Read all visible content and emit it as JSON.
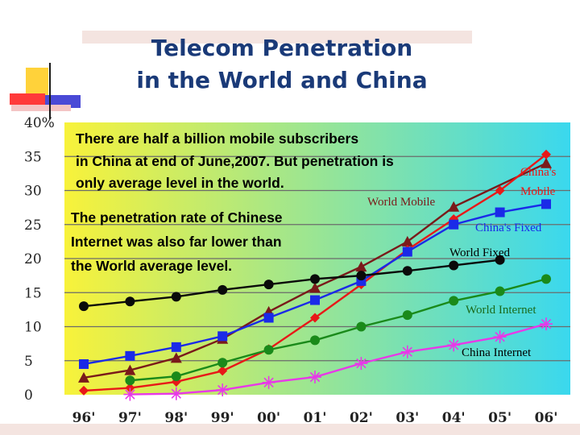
{
  "title": "Telecom Penetration\nin the World and China",
  "colors": {
    "title": "#1a3a78",
    "bg_yellow": "#f8f23a",
    "bg_cyan": "#3ad8ee",
    "grid": "#6b6b6b"
  },
  "chart_data": {
    "type": "line",
    "title": "Telecom Penetration in the World and China",
    "xlabel": "",
    "ylabel": "",
    "y_unit": "%",
    "ylim": [
      0,
      40
    ],
    "y_ticks": [
      "0",
      "5",
      "10",
      "15",
      "20",
      "25",
      "30",
      "35",
      "40"
    ],
    "y_top_label": "40%",
    "categories": [
      "96'",
      "97'",
      "98'",
      "99'",
      "00'",
      "01'",
      "02'",
      "03'",
      "04'",
      "05'",
      "06'"
    ],
    "grid": true,
    "annotations": [
      "There are half a billion mobile subscribers",
      "in China at end of June,2007. But penetration is",
      "only average level in the world.",
      "The penetration rate of Chinese",
      "Internet was also far lower than",
      "the World average level."
    ],
    "series": [
      {
        "name": "World Mobile",
        "color": "#7a1a1a",
        "marker": "triangle",
        "values": [
          2.5,
          3.6,
          5.4,
          8.2,
          12.2,
          15.7,
          18.8,
          22.5,
          27.6,
          null,
          34.0
        ]
      },
      {
        "name": "China's Mobile",
        "label_lines": [
          "China's",
          "Mobile"
        ],
        "color": "#e81818",
        "marker": "diamond",
        "values": [
          0.6,
          1.0,
          1.9,
          3.5,
          6.7,
          11.3,
          16.2,
          21.3,
          25.8,
          30.0,
          35.3
        ]
      },
      {
        "name": "China's Fixed",
        "color": "#1a2ae8",
        "marker": "square",
        "values": [
          4.5,
          5.7,
          7.0,
          8.6,
          11.3,
          13.9,
          16.7,
          21.0,
          25.0,
          26.8,
          28.0
        ]
      },
      {
        "name": "World Fixed",
        "color": "#0a0a0a",
        "marker": "circle",
        "values": [
          13.0,
          13.7,
          14.4,
          15.4,
          16.2,
          17.0,
          17.5,
          18.2,
          19.0,
          19.8,
          null
        ]
      },
      {
        "name": "World Internet",
        "color": "#1a8a1a",
        "marker": "circle",
        "values": [
          null,
          2.1,
          2.7,
          4.7,
          6.6,
          8.0,
          10.0,
          11.7,
          13.8,
          15.2,
          17.0
        ]
      },
      {
        "name": "China Internet",
        "color": "#e838e8",
        "marker": "star",
        "values": [
          null,
          0.05,
          0.15,
          0.7,
          1.8,
          2.6,
          4.6,
          6.3,
          7.3,
          8.5,
          10.4
        ]
      }
    ]
  }
}
